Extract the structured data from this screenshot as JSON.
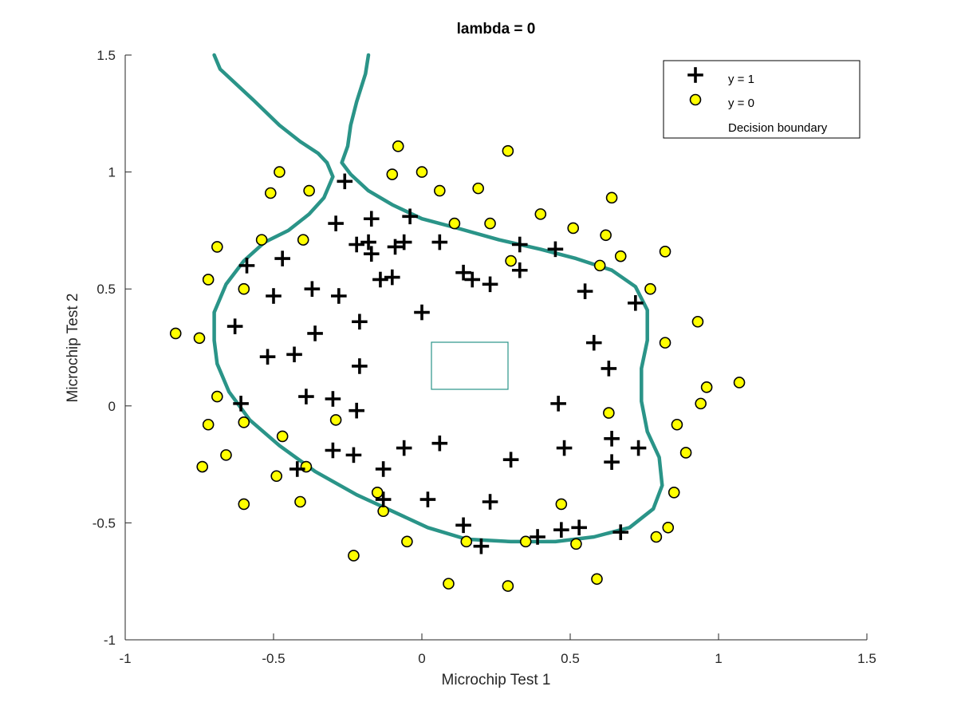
{
  "chart_data": {
    "type": "scatter",
    "title": "lambda = 0",
    "xlabel": "Microchip Test 1",
    "ylabel": "Microchip Test 2",
    "xlim": [
      -1,
      1.5
    ],
    "ylim": [
      -1,
      1.5
    ],
    "xticks": [
      "-1",
      "-0.5",
      "0",
      "0.5",
      "1",
      "1.5"
    ],
    "yticks": [
      "-1",
      "-0.5",
      "0",
      "0.5",
      "1",
      "1.5"
    ],
    "grid": false,
    "legend_position": "top-right",
    "colors": {
      "positive": "#000000",
      "negative_fill": "#ffff00",
      "negative_edge": "#000000",
      "boundary": "#2a9488"
    },
    "series": [
      {
        "name": "y = 1",
        "marker": "plus",
        "points": [
          [
            -0.26,
            0.96
          ],
          [
            -0.29,
            0.78
          ],
          [
            -0.17,
            0.8
          ],
          [
            -0.22,
            0.69
          ],
          [
            -0.18,
            0.7
          ],
          [
            -0.17,
            0.65
          ],
          [
            -0.09,
            0.68
          ],
          [
            -0.04,
            0.81
          ],
          [
            -0.06,
            0.7
          ],
          [
            -0.59,
            0.6
          ],
          [
            -0.47,
            0.63
          ],
          [
            0.06,
            0.7
          ],
          [
            0.14,
            0.57
          ],
          [
            0.17,
            0.54
          ],
          [
            0.23,
            0.52
          ],
          [
            0.33,
            0.58
          ],
          [
            0.33,
            0.69
          ],
          [
            0.45,
            0.67
          ],
          [
            -0.37,
            0.5
          ],
          [
            -0.28,
            0.47
          ],
          [
            -0.14,
            0.54
          ],
          [
            -0.1,
            0.55
          ],
          [
            -0.5,
            0.47
          ],
          [
            0.0,
            0.4
          ],
          [
            0.55,
            0.49
          ],
          [
            0.72,
            0.44
          ],
          [
            -0.63,
            0.34
          ],
          [
            -0.36,
            0.31
          ],
          [
            -0.21,
            0.36
          ],
          [
            0.58,
            0.27
          ],
          [
            0.63,
            0.16
          ],
          [
            -0.52,
            0.21
          ],
          [
            -0.43,
            0.22
          ],
          [
            -0.21,
            0.17
          ],
          [
            -0.61,
            0.01
          ],
          [
            -0.39,
            0.04
          ],
          [
            -0.3,
            0.03
          ],
          [
            -0.22,
            -0.02
          ],
          [
            0.46,
            0.01
          ],
          [
            -0.3,
            -0.19
          ],
          [
            -0.23,
            -0.21
          ],
          [
            -0.13,
            -0.27
          ],
          [
            -0.06,
            -0.18
          ],
          [
            0.06,
            -0.16
          ],
          [
            0.3,
            -0.23
          ],
          [
            0.48,
            -0.18
          ],
          [
            0.64,
            -0.14
          ],
          [
            0.73,
            -0.18
          ],
          [
            0.64,
            -0.24
          ],
          [
            -0.42,
            -0.27
          ],
          [
            -0.13,
            -0.4
          ],
          [
            0.02,
            -0.4
          ],
          [
            0.23,
            -0.41
          ],
          [
            0.14,
            -0.51
          ],
          [
            0.2,
            -0.6
          ],
          [
            0.39,
            -0.56
          ],
          [
            0.47,
            -0.53
          ],
          [
            0.53,
            -0.52
          ],
          [
            0.67,
            -0.54
          ]
        ]
      },
      {
        "name": "y = 0",
        "marker": "circle",
        "points": [
          [
            -0.48,
            1.0
          ],
          [
            -0.08,
            1.11
          ],
          [
            -0.1,
            0.99
          ],
          [
            0.0,
            1.0
          ],
          [
            0.29,
            1.09
          ],
          [
            0.06,
            0.92
          ],
          [
            0.19,
            0.93
          ],
          [
            -0.51,
            0.91
          ],
          [
            -0.38,
            0.92
          ],
          [
            0.11,
            0.78
          ],
          [
            0.23,
            0.78
          ],
          [
            0.4,
            0.82
          ],
          [
            0.51,
            0.76
          ],
          [
            0.64,
            0.89
          ],
          [
            0.62,
            0.73
          ],
          [
            -0.69,
            0.68
          ],
          [
            -0.54,
            0.71
          ],
          [
            -0.4,
            0.71
          ],
          [
            0.3,
            0.62
          ],
          [
            0.6,
            0.6
          ],
          [
            0.67,
            0.64
          ],
          [
            0.82,
            0.66
          ],
          [
            -0.72,
            0.54
          ],
          [
            -0.6,
            0.5
          ],
          [
            0.77,
            0.5
          ],
          [
            -0.83,
            0.31
          ],
          [
            -0.75,
            0.29
          ],
          [
            0.82,
            0.27
          ],
          [
            0.93,
            0.36
          ],
          [
            -0.69,
            0.04
          ],
          [
            -0.6,
            -0.07
          ],
          [
            -0.72,
            -0.08
          ],
          [
            -0.29,
            -0.06
          ],
          [
            0.63,
            -0.03
          ],
          [
            0.96,
            0.08
          ],
          [
            0.94,
            0.01
          ],
          [
            1.07,
            0.1
          ],
          [
            0.86,
            -0.08
          ],
          [
            -0.47,
            -0.13
          ],
          [
            -0.66,
            -0.21
          ],
          [
            -0.74,
            -0.26
          ],
          [
            -0.39,
            -0.26
          ],
          [
            -0.49,
            -0.3
          ],
          [
            0.89,
            -0.2
          ],
          [
            0.85,
            -0.37
          ],
          [
            -0.15,
            -0.37
          ],
          [
            -0.13,
            -0.45
          ],
          [
            -0.6,
            -0.42
          ],
          [
            -0.41,
            -0.41
          ],
          [
            0.47,
            -0.42
          ],
          [
            0.83,
            -0.52
          ],
          [
            0.79,
            -0.56
          ],
          [
            -0.05,
            -0.58
          ],
          [
            0.15,
            -0.58
          ],
          [
            0.35,
            -0.58
          ],
          [
            0.52,
            -0.59
          ],
          [
            -0.23,
            -0.64
          ],
          [
            0.09,
            -0.76
          ],
          [
            0.29,
            -0.77
          ],
          [
            0.59,
            -0.74
          ]
        ]
      },
      {
        "name": "Decision boundary",
        "marker": "line",
        "paths": [
          [
            [
              -0.32,
              1.04
            ],
            [
              -0.3,
              0.98
            ],
            [
              -0.33,
              0.89
            ],
            [
              -0.38,
              0.82
            ],
            [
              -0.45,
              0.75
            ],
            [
              -0.53,
              0.7
            ],
            [
              -0.6,
              0.62
            ],
            [
              -0.66,
              0.52
            ],
            [
              -0.7,
              0.4
            ],
            [
              -0.7,
              0.28
            ],
            [
              -0.69,
              0.18
            ],
            [
              -0.65,
              0.06
            ],
            [
              -0.58,
              -0.06
            ],
            [
              -0.48,
              -0.17
            ],
            [
              -0.36,
              -0.28
            ],
            [
              -0.22,
              -0.38
            ],
            [
              -0.1,
              -0.45
            ],
            [
              0.02,
              -0.52
            ],
            [
              0.15,
              -0.57
            ],
            [
              0.3,
              -0.58
            ],
            [
              0.45,
              -0.58
            ],
            [
              0.58,
              -0.56
            ],
            [
              0.7,
              -0.52
            ],
            [
              0.78,
              -0.44
            ],
            [
              0.81,
              -0.34
            ],
            [
              0.8,
              -0.22
            ],
            [
              0.76,
              -0.11
            ],
            [
              0.74,
              0.02
            ],
            [
              0.74,
              0.16
            ],
            [
              0.76,
              0.28
            ],
            [
              0.76,
              0.41
            ],
            [
              0.72,
              0.51
            ],
            [
              0.64,
              0.58
            ],
            [
              0.52,
              0.63
            ],
            [
              0.4,
              0.67
            ],
            [
              0.26,
              0.71
            ],
            [
              0.12,
              0.76
            ],
            [
              0.0,
              0.8
            ],
            [
              -0.1,
              0.86
            ],
            [
              -0.18,
              0.92
            ],
            [
              -0.24,
              0.99
            ],
            [
              -0.27,
              1.04
            ],
            [
              -0.25,
              1.11
            ],
            [
              -0.24,
              1.2
            ],
            [
              -0.22,
              1.3
            ],
            [
              -0.19,
              1.42
            ],
            [
              -0.18,
              1.5
            ]
          ],
          [
            [
              -0.32,
              1.04
            ],
            [
              -0.35,
              1.08
            ],
            [
              -0.41,
              1.13
            ],
            [
              -0.48,
              1.2
            ],
            [
              -0.57,
              1.31
            ],
            [
              -0.68,
              1.44
            ],
            [
              -0.7,
              1.5
            ]
          ]
        ]
      }
    ],
    "legend": [
      {
        "label": "y = 1",
        "marker": "plus"
      },
      {
        "label": "y = 0",
        "marker": "circle"
      },
      {
        "label": "Decision boundary",
        "marker": "none"
      }
    ]
  }
}
